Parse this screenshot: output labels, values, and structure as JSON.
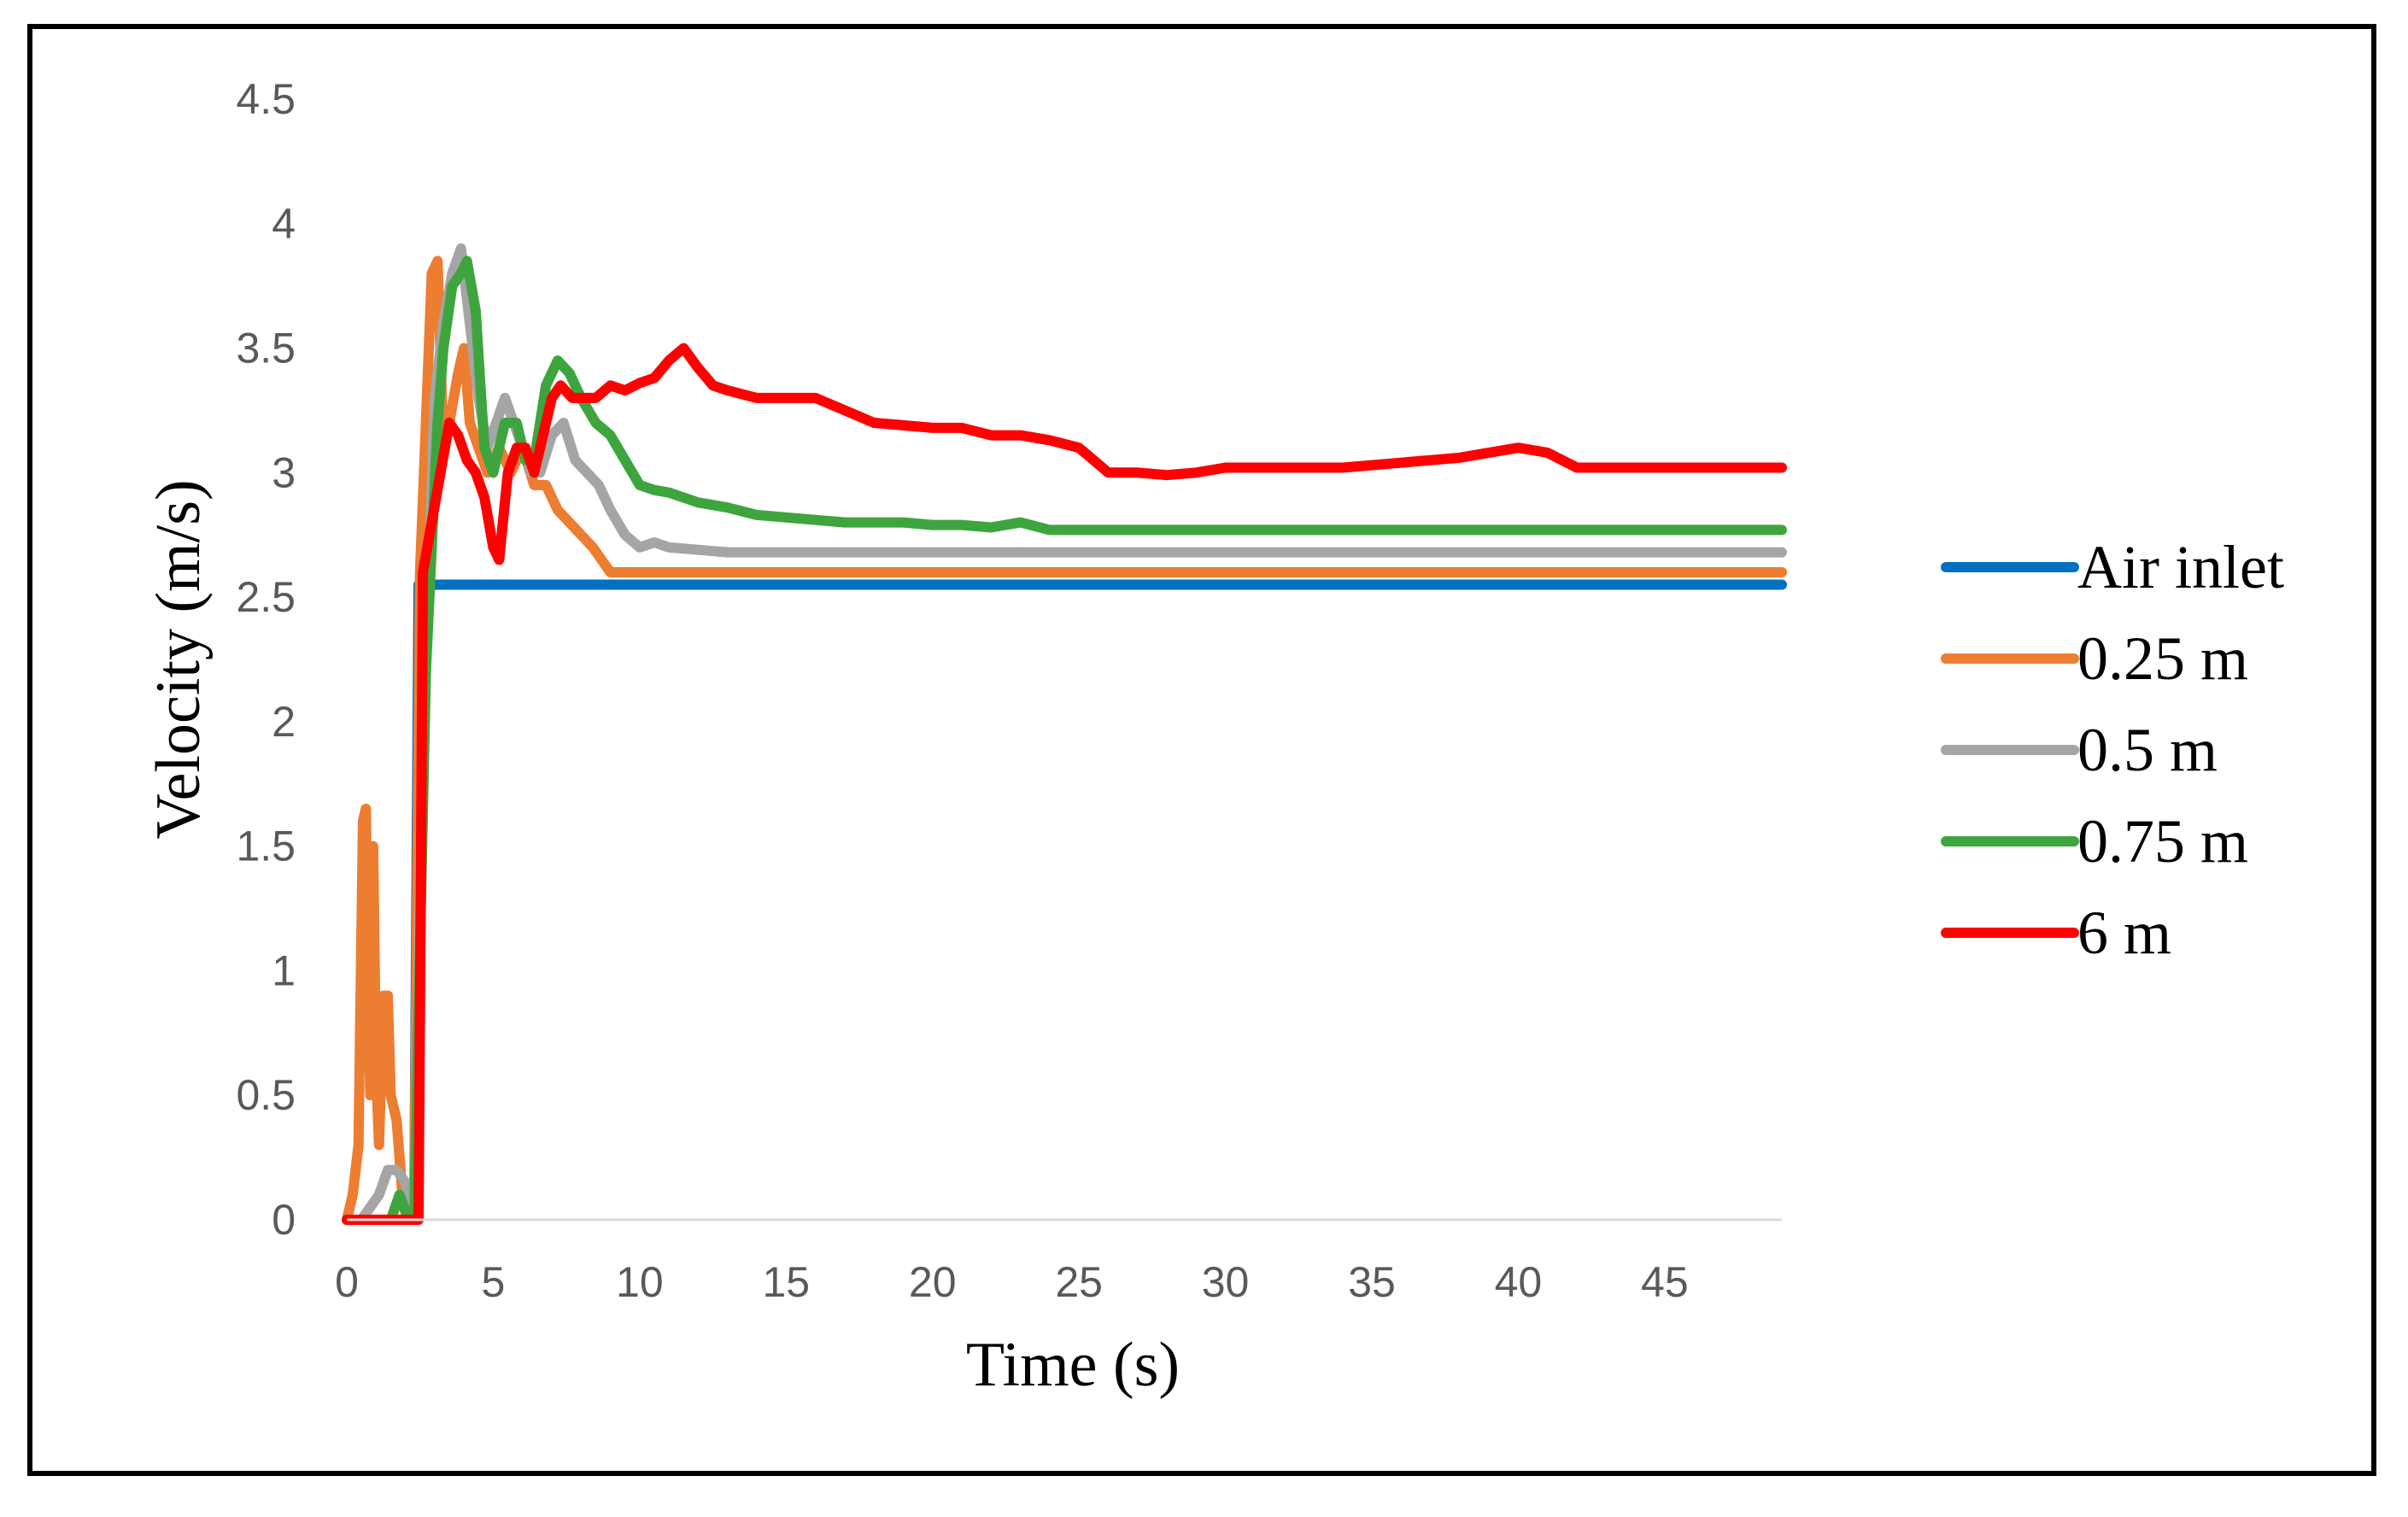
{
  "chart_data": {
    "type": "line",
    "title": "",
    "xlabel": "Time (s)",
    "ylabel": "Velocity (m/s)",
    "xlim": [
      0,
      49
    ],
    "ylim": [
      0,
      4.5
    ],
    "x_ticks": [
      0,
      5,
      10,
      15,
      20,
      25,
      30,
      35,
      40,
      45
    ],
    "y_ticks": [
      0,
      0.5,
      1,
      1.5,
      2,
      2.5,
      3,
      3.5,
      4,
      4.5
    ],
    "y_tick_labels": [
      "0",
      "0.5",
      "1",
      "1.5",
      "2",
      "2.5",
      "3",
      "3.5",
      "4",
      "4.5"
    ],
    "grid": false,
    "legend_position": "right",
    "series": [
      {
        "name": "Air inlet",
        "color": "#0070C0",
        "points": [
          [
            0,
            0
          ],
          [
            2.3,
            0
          ],
          [
            2.45,
            2.55
          ],
          [
            49,
            2.55
          ]
        ]
      },
      {
        "name": "0.25 m",
        "color": "#ED7D31",
        "points": [
          [
            0,
            0
          ],
          [
            0.2,
            0.1
          ],
          [
            0.4,
            0.3
          ],
          [
            0.55,
            1.6
          ],
          [
            0.65,
            1.65
          ],
          [
            0.8,
            0.5
          ],
          [
            0.9,
            1.5
          ],
          [
            1.0,
            0.6
          ],
          [
            1.1,
            0.3
          ],
          [
            1.25,
            0.9
          ],
          [
            1.4,
            0.9
          ],
          [
            1.5,
            0.5
          ],
          [
            1.7,
            0.4
          ],
          [
            1.9,
            0.1
          ],
          [
            2.1,
            0.1
          ],
          [
            2.3,
            0
          ],
          [
            2.5,
            2.6
          ],
          [
            2.7,
            3.2
          ],
          [
            2.9,
            3.8
          ],
          [
            3.1,
            3.85
          ],
          [
            3.3,
            3.1
          ],
          [
            3.5,
            3.2
          ],
          [
            3.8,
            3.4
          ],
          [
            4.0,
            3.5
          ],
          [
            4.2,
            3.2
          ],
          [
            4.5,
            3.1
          ],
          [
            4.8,
            3.0
          ],
          [
            5.2,
            3.1
          ],
          [
            5.6,
            3.0
          ],
          [
            6.0,
            3.1
          ],
          [
            6.4,
            2.95
          ],
          [
            6.8,
            2.95
          ],
          [
            7.2,
            2.85
          ],
          [
            7.6,
            2.8
          ],
          [
            8.0,
            2.75
          ],
          [
            8.4,
            2.7
          ],
          [
            8.7,
            2.65
          ],
          [
            9.0,
            2.6
          ],
          [
            49,
            2.6
          ]
        ]
      },
      {
        "name": "0.5 m",
        "color": "#A5A5A5",
        "points": [
          [
            0,
            0
          ],
          [
            0.5,
            0
          ],
          [
            0.8,
            0.05
          ],
          [
            1.1,
            0.1
          ],
          [
            1.4,
            0.2
          ],
          [
            1.7,
            0.2
          ],
          [
            2.0,
            0.15
          ],
          [
            2.3,
            0
          ],
          [
            2.6,
            2.0
          ],
          [
            2.8,
            2.6
          ],
          [
            3.0,
            3.3
          ],
          [
            3.3,
            3.6
          ],
          [
            3.6,
            3.8
          ],
          [
            3.9,
            3.9
          ],
          [
            4.2,
            3.6
          ],
          [
            4.5,
            3.3
          ],
          [
            4.8,
            3.1
          ],
          [
            5.1,
            3.2
          ],
          [
            5.4,
            3.3
          ],
          [
            5.7,
            3.2
          ],
          [
            6.0,
            3.1
          ],
          [
            6.3,
            3.0
          ],
          [
            6.6,
            3.0
          ],
          [
            7.0,
            3.15
          ],
          [
            7.4,
            3.2
          ],
          [
            7.8,
            3.05
          ],
          [
            8.2,
            3.0
          ],
          [
            8.6,
            2.95
          ],
          [
            9.0,
            2.85
          ],
          [
            9.5,
            2.75
          ],
          [
            10.0,
            2.7
          ],
          [
            10.5,
            2.72
          ],
          [
            11.0,
            2.7
          ],
          [
            12.0,
            2.69
          ],
          [
            13.0,
            2.68
          ],
          [
            49,
            2.68
          ]
        ]
      },
      {
        "name": "0.75 m",
        "color": "#3EA53E",
        "points": [
          [
            0,
            0
          ],
          [
            1.5,
            0
          ],
          [
            1.8,
            0.1
          ],
          [
            2.1,
            0
          ],
          [
            2.3,
            0
          ],
          [
            2.7,
            2.2
          ],
          [
            2.9,
            2.7
          ],
          [
            3.1,
            3.2
          ],
          [
            3.3,
            3.5
          ],
          [
            3.6,
            3.75
          ],
          [
            3.9,
            3.8
          ],
          [
            4.1,
            3.85
          ],
          [
            4.4,
            3.65
          ],
          [
            4.7,
            3.1
          ],
          [
            5.0,
            3.0
          ],
          [
            5.4,
            3.2
          ],
          [
            5.8,
            3.2
          ],
          [
            6.1,
            3.05
          ],
          [
            6.4,
            3.05
          ],
          [
            6.8,
            3.35
          ],
          [
            7.2,
            3.45
          ],
          [
            7.6,
            3.4
          ],
          [
            8.0,
            3.3
          ],
          [
            8.5,
            3.2
          ],
          [
            9.0,
            3.15
          ],
          [
            9.5,
            3.05
          ],
          [
            10.0,
            2.95
          ],
          [
            10.5,
            2.93
          ],
          [
            11.0,
            2.92
          ],
          [
            12.0,
            2.88
          ],
          [
            13.0,
            2.86
          ],
          [
            14.0,
            2.83
          ],
          [
            15.0,
            2.82
          ],
          [
            16.0,
            2.81
          ],
          [
            17.0,
            2.8
          ],
          [
            18.0,
            2.8
          ],
          [
            19.0,
            2.8
          ],
          [
            20.0,
            2.79
          ],
          [
            21.0,
            2.79
          ],
          [
            22.0,
            2.78
          ],
          [
            23.0,
            2.8
          ],
          [
            24.0,
            2.77
          ],
          [
            49,
            2.77
          ]
        ]
      },
      {
        "name": "6 m",
        "color": "#FF0000",
        "points": [
          [
            0,
            0
          ],
          [
            2.3,
            0
          ],
          [
            2.45,
            0
          ],
          [
            2.6,
            2.6
          ],
          [
            2.9,
            2.8
          ],
          [
            3.2,
            3.0
          ],
          [
            3.5,
            3.2
          ],
          [
            3.8,
            3.15
          ],
          [
            4.1,
            3.05
          ],
          [
            4.4,
            3.0
          ],
          [
            4.7,
            2.9
          ],
          [
            5.0,
            2.7
          ],
          [
            5.2,
            2.65
          ],
          [
            5.5,
            3.0
          ],
          [
            5.8,
            3.1
          ],
          [
            6.1,
            3.1
          ],
          [
            6.4,
            3.0
          ],
          [
            6.7,
            3.15
          ],
          [
            7.0,
            3.3
          ],
          [
            7.3,
            3.35
          ],
          [
            7.7,
            3.3
          ],
          [
            8.0,
            3.3
          ],
          [
            8.5,
            3.3
          ],
          [
            9.0,
            3.35
          ],
          [
            9.5,
            3.33
          ],
          [
            10.0,
            3.36
          ],
          [
            10.5,
            3.38
          ],
          [
            11.0,
            3.45
          ],
          [
            11.5,
            3.5
          ],
          [
            12.0,
            3.42
          ],
          [
            12.5,
            3.35
          ],
          [
            13.0,
            3.33
          ],
          [
            14.0,
            3.3
          ],
          [
            15.0,
            3.3
          ],
          [
            16.0,
            3.3
          ],
          [
            17.0,
            3.25
          ],
          [
            18.0,
            3.2
          ],
          [
            19.0,
            3.19
          ],
          [
            20.0,
            3.18
          ],
          [
            21.0,
            3.18
          ],
          [
            22.0,
            3.15
          ],
          [
            23.0,
            3.15
          ],
          [
            24.0,
            3.13
          ],
          [
            25.0,
            3.1
          ],
          [
            26.0,
            3.0
          ],
          [
            27.0,
            3.0
          ],
          [
            28.0,
            2.99
          ],
          [
            29.0,
            3.0
          ],
          [
            30.0,
            3.02
          ],
          [
            32.0,
            3.02
          ],
          [
            34.0,
            3.02
          ],
          [
            36.0,
            3.04
          ],
          [
            38.0,
            3.06
          ],
          [
            40.0,
            3.1
          ],
          [
            41.0,
            3.08
          ],
          [
            42.0,
            3.02
          ],
          [
            49,
            3.02
          ]
        ]
      }
    ]
  }
}
